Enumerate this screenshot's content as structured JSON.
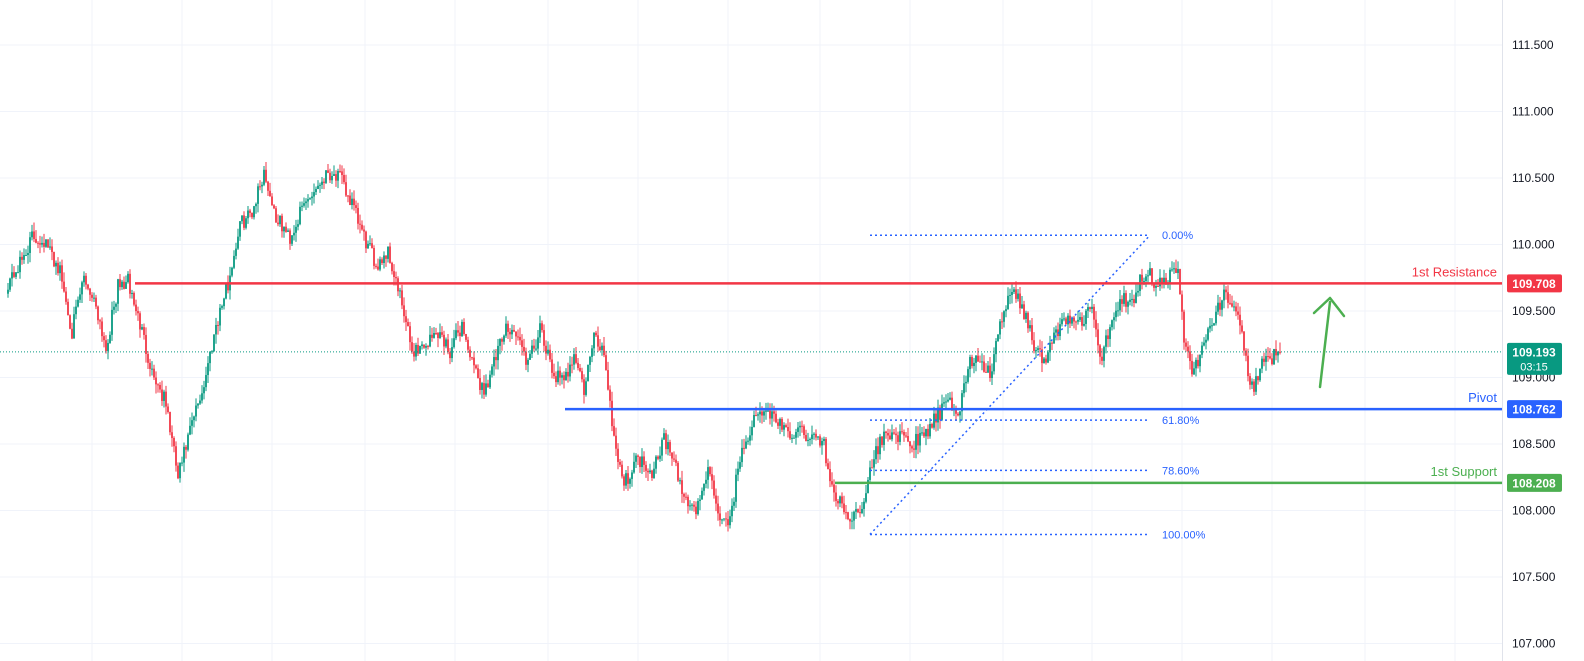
{
  "colors": {
    "up": "#089981",
    "down": "#f23645",
    "resistance": "#f23645",
    "pivot": "#2962ff",
    "support": "#4caf50",
    "fib": "#2962ff",
    "current": "#089981",
    "arrow": "#4caf50",
    "grid": "#f0f3fa"
  },
  "chart_data": {
    "type": "candlestick",
    "y_axis": {
      "min": 107.0,
      "max": 111.75,
      "ticks": [
        "107.000",
        "107.500",
        "108.000",
        "108.500",
        "109.000",
        "109.500",
        "110.000",
        "110.500",
        "111.000",
        "111.500"
      ]
    },
    "current_price": {
      "value": "109.193",
      "countdown": "03:15"
    },
    "levels": [
      {
        "id": "resistance",
        "label": "1st Resistance",
        "value": 109.708,
        "value_text": "109.708"
      },
      {
        "id": "pivot",
        "label": "Pivot",
        "value": 108.762,
        "value_text": "108.762"
      },
      {
        "id": "support",
        "label": "1st Support",
        "value": 108.208,
        "value_text": "108.208"
      }
    ],
    "fibonacci": {
      "high": 110.07,
      "low": 107.82,
      "levels": [
        {
          "label": "0.00%",
          "ratio": 0.0
        },
        {
          "label": "61.80%",
          "ratio": 0.618
        },
        {
          "label": "78.60%",
          "ratio": 0.786
        },
        {
          "label": "100.00%",
          "ratio": 1.0
        }
      ]
    },
    "trend_signal": "up",
    "price_waypoints": [
      [
        0,
        109.72
      ],
      [
        6,
        109.85
      ],
      [
        12,
        110.05
      ],
      [
        18,
        110.03
      ],
      [
        26,
        109.8
      ],
      [
        32,
        109.35
      ],
      [
        38,
        109.75
      ],
      [
        44,
        109.55
      ],
      [
        49,
        109.22
      ],
      [
        55,
        109.68
      ],
      [
        60,
        109.72
      ],
      [
        66,
        109.4
      ],
      [
        72,
        109.05
      ],
      [
        79,
        108.8
      ],
      [
        85,
        108.25
      ],
      [
        92,
        108.65
      ],
      [
        98,
        108.95
      ],
      [
        104,
        109.4
      ],
      [
        110,
        109.7
      ],
      [
        116,
        110.15
      ],
      [
        122,
        110.25
      ],
      [
        128,
        110.55
      ],
      [
        134,
        110.2
      ],
      [
        141,
        110.05
      ],
      [
        148,
        110.3
      ],
      [
        155,
        110.45
      ],
      [
        160,
        110.55
      ],
      [
        166,
        110.5
      ],
      [
        172,
        110.3
      ],
      [
        178,
        110.05
      ],
      [
        184,
        109.85
      ],
      [
        190,
        109.95
      ],
      [
        196,
        109.6
      ],
      [
        202,
        109.2
      ],
      [
        209,
        109.25
      ],
      [
        215,
        109.35
      ],
      [
        221,
        109.2
      ],
      [
        227,
        109.4
      ],
      [
        233,
        109.05
      ],
      [
        238,
        108.9
      ],
      [
        244,
        109.15
      ],
      [
        250,
        109.4
      ],
      [
        255,
        109.3
      ],
      [
        260,
        109.1
      ],
      [
        266,
        109.35
      ],
      [
        272,
        109.05
      ],
      [
        278,
        108.95
      ],
      [
        283,
        109.2
      ],
      [
        288,
        108.9
      ],
      [
        293,
        109.3
      ],
      [
        298,
        109.2
      ],
      [
        303,
        108.55
      ],
      [
        308,
        108.2
      ],
      [
        315,
        108.4
      ],
      [
        322,
        108.3
      ],
      [
        328,
        108.55
      ],
      [
        333,
        108.35
      ],
      [
        338,
        108.1
      ],
      [
        344,
        108.0
      ],
      [
        350,
        108.3
      ],
      [
        355,
        108.0
      ],
      [
        360,
        107.85
      ],
      [
        366,
        108.4
      ],
      [
        372,
        108.65
      ],
      [
        378,
        108.75
      ],
      [
        384,
        108.7
      ],
      [
        390,
        108.55
      ],
      [
        396,
        108.6
      ],
      [
        402,
        108.55
      ],
      [
        408,
        108.5
      ],
      [
        412,
        108.15
      ],
      [
        418,
        108.0
      ],
      [
        423,
        107.95
      ],
      [
        428,
        108.1
      ],
      [
        434,
        108.45
      ],
      [
        440,
        108.6
      ],
      [
        446,
        108.55
      ],
      [
        452,
        108.5
      ],
      [
        458,
        108.55
      ],
      [
        464,
        108.7
      ],
      [
        470,
        108.8
      ],
      [
        476,
        108.75
      ],
      [
        480,
        109.1
      ],
      [
        486,
        109.15
      ],
      [
        491,
        109.0
      ],
      [
        496,
        109.4
      ],
      [
        502,
        109.65
      ],
      [
        508,
        109.5
      ],
      [
        513,
        109.25
      ],
      [
        518,
        109.1
      ],
      [
        524,
        109.35
      ],
      [
        530,
        109.45
      ],
      [
        536,
        109.4
      ],
      [
        542,
        109.55
      ],
      [
        546,
        109.1
      ],
      [
        552,
        109.45
      ],
      [
        557,
        109.6
      ],
      [
        562,
        109.55
      ],
      [
        566,
        109.75
      ],
      [
        570,
        109.8
      ],
      [
        574,
        109.7
      ],
      [
        580,
        109.75
      ],
      [
        585,
        109.8
      ],
      [
        588,
        109.3
      ],
      [
        592,
        109.05
      ],
      [
        597,
        109.2
      ],
      [
        602,
        109.4
      ],
      [
        608,
        109.65
      ],
      [
        612,
        109.5
      ],
      [
        616,
        109.4
      ],
      [
        620,
        109.05
      ],
      [
        623,
        108.9
      ],
      [
        627,
        109.1
      ],
      [
        632,
        109.15
      ],
      [
        636,
        109.19
      ]
    ]
  }
}
